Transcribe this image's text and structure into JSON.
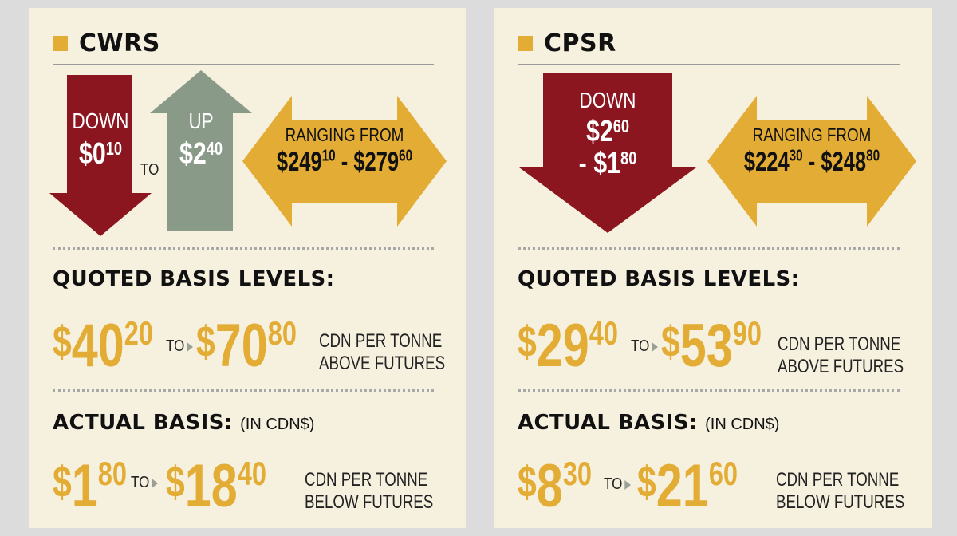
{
  "panels": {
    "cwrs": {
      "title": "CWRS",
      "down": {
        "label": "DOWN",
        "amount": "$0",
        "amount_sup": "10"
      },
      "to_label": "TO",
      "up": {
        "label": "UP",
        "amount": "$2",
        "amount_sup": "40"
      },
      "range": {
        "label": "RANGING FROM",
        "low": "$249",
        "low_sup": "10",
        "sep": " - ",
        "high": "$279",
        "high_sup": "60"
      },
      "quoted": {
        "heading": "QUOTED BASIS LEVELS:",
        "low_dollar": "$",
        "low": "40",
        "low_sup": "20",
        "to": "TO",
        "high_dollar": "$",
        "high": "70",
        "high_sup": "80",
        "desc1": "CDN PER TONNE",
        "desc2": "ABOVE FUTURES"
      },
      "actual": {
        "heading": "ACTUAL BASIS:",
        "paren": "(IN CDN$)",
        "low_dollar": "$",
        "low": "1",
        "low_sup": "80",
        "to": "TO",
        "high_dollar": "$",
        "high": "18",
        "high_sup": "40",
        "desc1": "CDN PER TONNE",
        "desc2": "BELOW FUTURES"
      }
    },
    "cpsr": {
      "title": "CPSR",
      "down": {
        "label": "DOWN",
        "amount": "$2",
        "amount_sup": "60",
        "amount2": "- $1",
        "amount2_sup": "80"
      },
      "range": {
        "label": "RANGING FROM",
        "low": "$224",
        "low_sup": "30",
        "sep": " - ",
        "high": "$248",
        "high_sup": "80"
      },
      "quoted": {
        "heading": "QUOTED BASIS LEVELS:",
        "low_dollar": "$",
        "low": "29",
        "low_sup": "40",
        "to": "TO",
        "high_dollar": "$",
        "high": "53",
        "high_sup": "90",
        "desc1": "CDN PER TONNE",
        "desc2": "ABOVE FUTURES"
      },
      "actual": {
        "heading": "ACTUAL BASIS:",
        "paren": "(IN CDN$)",
        "low_dollar": "$",
        "low": "8",
        "low_sup": "30",
        "to": "TO",
        "high_dollar": "$",
        "high": "21",
        "high_sup": "60",
        "desc1": "CDN PER TONNE",
        "desc2": "BELOW FUTURES"
      }
    }
  },
  "colors": {
    "panel_bg": "#f6f0df",
    "down_red": "#8b1620",
    "up_green": "#8a9a88",
    "gold": "#e3ac35",
    "text_dark": "#111111"
  },
  "icons": [
    "down-arrow-icon",
    "up-arrow-icon",
    "double-arrow-icon",
    "small-triangle-icon",
    "bullet-square-icon"
  ]
}
